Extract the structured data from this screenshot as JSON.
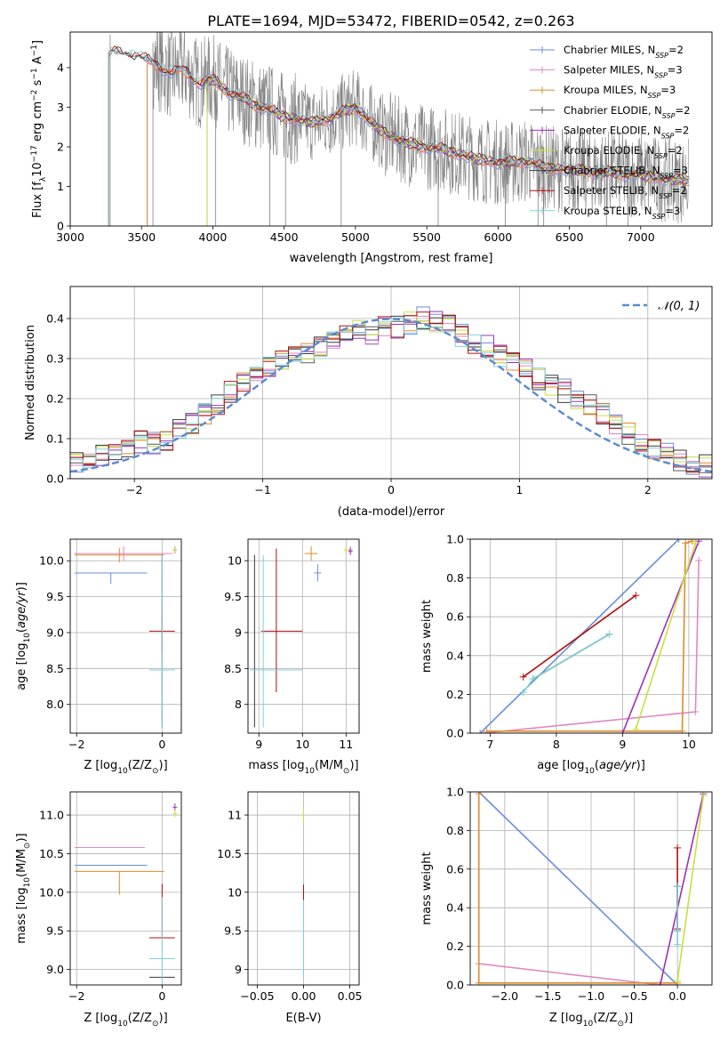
{
  "figure_title": "PLATE=1694, MJD=53472, FIBERID=0542, z=0.263",
  "series_colors": {
    "chabrier_miles": "#6a8fd8",
    "salpeter_miles": "#e088c0",
    "kroupa_miles": "#e08a2a",
    "chabrier_elodie": "#5a5a5a",
    "salpeter_elodie": "#9b30b8",
    "kroupa_elodie": "#c8e040",
    "chabrier_stelib": "#3a3a3a",
    "salpeter_stelib": "#b01010",
    "kroupa_stelib": "#80d0d8",
    "data": "#808080",
    "normal": "#5a8ad0"
  },
  "legend_spectrum": [
    {
      "prefix": "Chabrier MILES, N",
      "sub": "SSP",
      "suffix": "=2",
      "color": "#6a8fd8"
    },
    {
      "prefix": "Salpeter MILES, N",
      "sub": "SSP",
      "suffix": "=3",
      "color": "#e088c0"
    },
    {
      "prefix": "Kroupa MILES, N",
      "sub": "SSP",
      "suffix": "=3",
      "color": "#e08a2a"
    },
    {
      "prefix": "Chabrier ELODIE, N",
      "sub": "SSP",
      "suffix": "=2",
      "color": "#5a5a5a"
    },
    {
      "prefix": "Salpeter ELODIE, N",
      "sub": "SSP",
      "suffix": "=2",
      "color": "#9b30b8"
    },
    {
      "prefix": "Kroupa ELODIE, N",
      "sub": "SSP",
      "suffix": "=2",
      "color": "#c8e040"
    },
    {
      "prefix": "Chabrier STELIB, N",
      "sub": "SSP",
      "suffix": "=3",
      "color": "#3a3a3a"
    },
    {
      "prefix": "Salpeter STELIB, N",
      "sub": "SSP",
      "suffix": "=2",
      "color": "#b01010"
    },
    {
      "prefix": "Kroupa STELIB, N",
      "sub": "SSP",
      "suffix": "=3",
      "color": "#80d0d8"
    }
  ],
  "chart_data": [
    {
      "id": "spectrum",
      "type": "line",
      "xlabel": "wavelength [Angstrom, rest frame]",
      "ylabel_parts": {
        "pre": "Flux [f",
        "sub": "λ",
        "mid": "10",
        "sup1": "−17",
        "post": " erg cm",
        "sup2": "−2",
        "s": " s",
        "sup3": "−1",
        "a": " A",
        "sup4": "−1",
        "end": "]"
      },
      "xlim": [
        3000,
        7500
      ],
      "ylim": [
        0,
        4.9
      ],
      "xticks": [
        3000,
        3500,
        4000,
        4500,
        5000,
        5500,
        6000,
        6500,
        7000
      ],
      "yticks": [
        0,
        1,
        2,
        3,
        4
      ],
      "model_continuum": {
        "x": [
          3270,
          3300,
          3400,
          3500,
          3600,
          3700,
          3800,
          3900,
          4000,
          4100,
          4200,
          4300,
          4400,
          4500,
          4600,
          4700,
          4800,
          4900,
          5000,
          5100,
          5200,
          5300,
          5400,
          5500,
          5600,
          5700,
          5800,
          5900,
          6000,
          6100,
          6200,
          6300,
          6400,
          6500,
          6600,
          6700,
          6800,
          6900,
          7000,
          7100,
          7200,
          7300
        ],
        "y": [
          4.3,
          4.4,
          4.35,
          4.25,
          4.1,
          3.85,
          3.95,
          3.6,
          3.7,
          3.4,
          3.25,
          3.05,
          2.95,
          2.75,
          2.7,
          2.6,
          2.7,
          2.85,
          3.0,
          2.65,
          2.35,
          2.2,
          2.05,
          2.0,
          1.95,
          1.85,
          1.75,
          1.65,
          1.62,
          1.6,
          1.65,
          1.5,
          1.45,
          1.42,
          1.4,
          1.35,
          1.35,
          1.3,
          1.3,
          1.22,
          1.18,
          1.15
        ]
      }
    },
    {
      "id": "residuals",
      "type": "line",
      "xlabel": "(data-model)/error",
      "ylabel": "Normed distribution",
      "legend": "𝒩(0, 1)",
      "xlim": [
        -2.5,
        2.5
      ],
      "ylim": [
        0,
        0.48
      ],
      "xticks": [
        -2,
        -1,
        0,
        1,
        2
      ],
      "xtick_labels": [
        "−2",
        "−1",
        "0",
        "1",
        "2"
      ],
      "yticks": [
        0.0,
        0.1,
        0.2,
        0.3,
        0.4
      ],
      "ytick_labels": [
        "0.0",
        "0.1",
        "0.2",
        "0.3",
        "0.4"
      ],
      "bin_width": 0.1,
      "bin_start": -2.5,
      "hist_values": [
        0.04,
        0.05,
        0.06,
        0.07,
        0.08,
        0.09,
        0.09,
        0.1,
        0.12,
        0.14,
        0.16,
        0.19,
        0.22,
        0.24,
        0.26,
        0.28,
        0.29,
        0.3,
        0.31,
        0.33,
        0.34,
        0.36,
        0.37,
        0.36,
        0.38,
        0.38,
        0.39,
        0.4,
        0.39,
        0.38,
        0.36,
        0.34,
        0.33,
        0.31,
        0.29,
        0.28,
        0.25,
        0.23,
        0.22,
        0.2,
        0.18,
        0.16,
        0.13,
        0.11,
        0.09,
        0.07,
        0.06,
        0.05,
        0.04,
        0.03
      ]
    },
    {
      "id": "age_vs_Z",
      "type": "scatter",
      "xlabel_parts": {
        "pre": "Z [log",
        "sub": "10",
        "mid": "(Z/Z",
        "sub2": "⊙",
        "post": ")]"
      },
      "ylabel_parts": {
        "pre": "age  [log",
        "sub": "10",
        "mid": "(",
        "it": "age/yr",
        "post": ")]"
      },
      "xlim": [
        -2.15,
        0.45
      ],
      "ylim": [
        7.6,
        10.3
      ],
      "xticks": [
        -2,
        0
      ],
      "xtick_labels": [
        "−2",
        "0"
      ],
      "yticks": [
        8.0,
        8.5,
        9.0,
        9.5,
        10.0
      ],
      "ytick_labels": [
        "8.0",
        "8.5",
        "9.0",
        "9.5",
        "10.0"
      ]
    },
    {
      "id": "age_vs_mass",
      "type": "scatter",
      "xlabel_parts": {
        "pre": "mass [log",
        "sub": "10",
        "mid": "(M/M",
        "sub2": "⊙",
        "post": ")]"
      },
      "xlim": [
        8.75,
        11.3
      ],
      "ylim": [
        7.6,
        10.3
      ],
      "xticks": [
        9,
        10,
        11
      ],
      "xtick_labels": [
        "9",
        "10",
        "11"
      ]
    },
    {
      "id": "weight_vs_age",
      "type": "line",
      "xlabel_parts": {
        "pre": "age  [log",
        "sub": "10",
        "mid": "(",
        "it": "age/yr",
        "post": ")]"
      },
      "ylabel": "mass weight",
      "xlim": [
        6.7,
        10.35
      ],
      "ylim": [
        0,
        1.0
      ],
      "xticks": [
        7,
        8,
        9,
        10
      ],
      "xtick_labels": [
        "7",
        "8",
        "9",
        "10"
      ],
      "yticks": [
        0.0,
        0.2,
        0.4,
        0.6,
        0.8,
        1.0
      ],
      "ytick_labels": [
        "0.0",
        "0.2",
        "0.4",
        "0.6",
        "0.8",
        "1.0"
      ],
      "series": [
        {
          "key": "chabrier_miles",
          "x": [
            6.85,
            9.85
          ],
          "y": [
            0.0,
            1.0
          ]
        },
        {
          "key": "salpeter_miles",
          "x": [
            6.9,
            10.1,
            10.15
          ],
          "y": [
            0.0,
            0.11,
            0.89
          ]
        },
        {
          "key": "kroupa_miles",
          "x": [
            6.95,
            9.9,
            9.95,
            10.05
          ],
          "y": [
            0.01,
            0.01,
            0.98,
            0.99
          ]
        },
        {
          "key": "salpeter_elodie",
          "x": [
            9.0,
            10.15
          ],
          "y": [
            0.0,
            0.99
          ]
        },
        {
          "key": "kroupa_elodie",
          "x": [
            9.2,
            10.1
          ],
          "y": [
            0.02,
            0.98
          ]
        },
        {
          "key": "chabrier_stelib",
          "x": [
            7.65,
            8.8
          ],
          "y": [
            0.28,
            0.51
          ]
        },
        {
          "key": "salpeter_stelib",
          "x": [
            7.5,
            9.2
          ],
          "y": [
            0.29,
            0.71
          ]
        },
        {
          "key": "kroupa_stelib",
          "x": [
            7.5,
            7.65,
            8.8
          ],
          "y": [
            0.21,
            0.28,
            0.51
          ]
        }
      ]
    },
    {
      "id": "mass_vs_Z",
      "type": "scatter",
      "xlabel_parts": {
        "pre": "Z [log",
        "sub": "10",
        "mid": "(Z/Z",
        "sub2": "⊙",
        "post": ")]"
      },
      "ylabel_parts": {
        "pre": "mass [log",
        "sub": "10",
        "mid": "(M/M",
        "sub2": "⊙",
        "post": ")]"
      },
      "xlim": [
        -2.15,
        0.45
      ],
      "ylim": [
        8.8,
        11.3
      ],
      "xticks": [
        -2,
        0
      ],
      "xtick_labels": [
        "−2",
        "0"
      ],
      "yticks": [
        9.0,
        9.5,
        10.0,
        10.5,
        11.0
      ],
      "ytick_labels": [
        "9.0",
        "9.5",
        "10.0",
        "10.5",
        "11.0"
      ]
    },
    {
      "id": "mass_vs_EBV",
      "type": "scatter",
      "xlabel": "E(B-V)",
      "xlim": [
        -0.06,
        0.06
      ],
      "ylim": [
        8.8,
        11.3
      ],
      "xticks": [
        -0.05,
        0.0,
        0.05
      ],
      "xtick_labels": [
        "−0.05",
        "0.00",
        "0.05"
      ]
    },
    {
      "id": "weight_vs_Z",
      "type": "line",
      "xlabel_parts": {
        "pre": "Z [log",
        "sub": "10",
        "mid": "(Z/Z",
        "sub2": "⊙",
        "post": ")]"
      },
      "ylabel": "mass weight",
      "xlim": [
        -2.4,
        0.4
      ],
      "ylim": [
        0,
        1.0
      ],
      "xticks": [
        -2.0,
        -1.5,
        -1.0,
        -0.5,
        0.0
      ],
      "xtick_labels": [
        "−2.0",
        "−1.5",
        "−1.0",
        "−0.5",
        "0.0"
      ],
      "yticks": [
        0.0,
        0.2,
        0.4,
        0.6,
        0.8,
        1.0
      ],
      "ytick_labels": [
        "0.0",
        "0.2",
        "0.4",
        "0.6",
        "0.8",
        "1.0"
      ],
      "series": [
        {
          "key": "chabrier_miles",
          "x": [
            -2.3,
            0.0
          ],
          "y": [
            1.0,
            0.0
          ]
        },
        {
          "key": "salpeter_miles",
          "x": [
            -2.3,
            -0.2,
            0.0
          ],
          "y": [
            0.11,
            0.0,
            0.0
          ]
        },
        {
          "key": "kroupa_miles",
          "x": [
            -2.3,
            -2.3,
            0.0
          ],
          "y": [
            0.99,
            0.01,
            0.01
          ]
        },
        {
          "key": "salpeter_elodie",
          "x": [
            -0.2,
            0.3
          ],
          "y": [
            0.0,
            0.99
          ]
        },
        {
          "key": "kroupa_elodie",
          "x": [
            0.0,
            0.3
          ],
          "y": [
            0.02,
            0.98
          ]
        },
        {
          "key": "chabrier_stelib",
          "x": [
            0.0,
            0.0
          ],
          "y": [
            0.28,
            0.51
          ]
        },
        {
          "key": "salpeter_stelib",
          "x": [
            0.0,
            0.0
          ],
          "y": [
            0.29,
            0.71
          ]
        },
        {
          "key": "kroupa_stelib",
          "x": [
            0.0,
            0.0,
            0.0
          ],
          "y": [
            0.21,
            0.28,
            0.51
          ]
        }
      ]
    }
  ]
}
